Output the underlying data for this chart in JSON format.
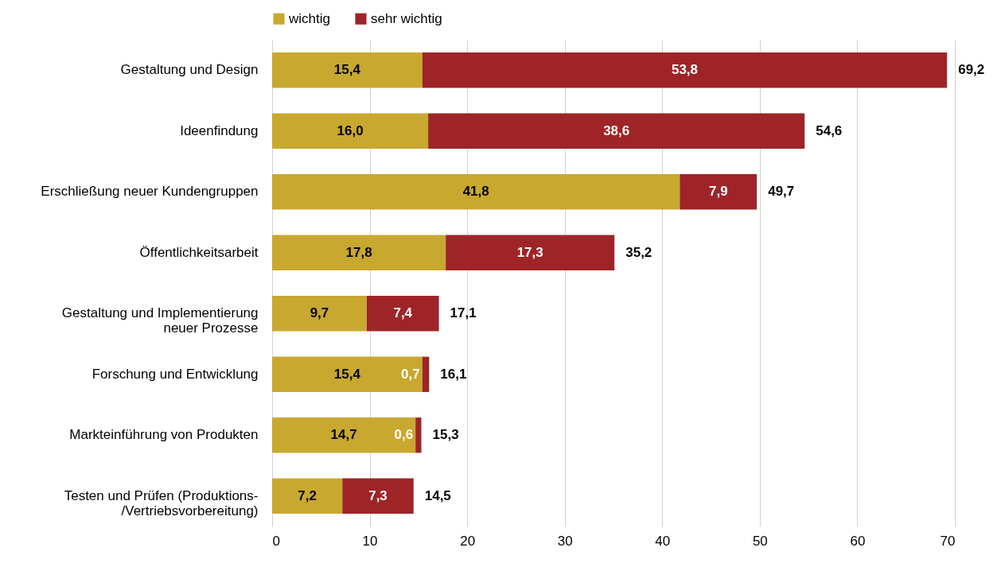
{
  "chart_data": {
    "type": "bar",
    "orientation": "horizontal",
    "stacked": true,
    "categories": [
      "Gestaltung und Design",
      "Ideenfindung",
      "Erschließung neuer Kundengruppen",
      "Öffentlichkeitsarbeit",
      "Gestaltung und Implementierung neuer Prozesse",
      "Forschung und Entwicklung",
      "Markteinführung von Produkten",
      "Testen und Prüfen (Produktions-/Vertriebsvorbereitung)"
    ],
    "series": [
      {
        "name": "wichtig",
        "color": "#c8a82f",
        "values": [
          15.4,
          16.0,
          41.8,
          17.8,
          9.7,
          15.4,
          14.7,
          7.2
        ],
        "value_labels": [
          "15,4",
          "16,0",
          "41,8",
          "17,8",
          "9,7",
          "15,4",
          "14,7",
          "7,2"
        ]
      },
      {
        "name": "sehr wichtig",
        "color": "#9e2427",
        "values": [
          53.8,
          38.6,
          7.9,
          17.3,
          7.4,
          0.7,
          0.6,
          7.3
        ],
        "value_labels": [
          "53,8",
          "38,6",
          "7,9",
          "17,3",
          "7,4",
          "0,7",
          "0,6",
          "7,3"
        ]
      }
    ],
    "totals": [
      "69,2",
      "54,6",
      "49,7",
      "35,2",
      "17,1",
      "16,1",
      "15,3",
      "14,5"
    ],
    "xlim": [
      0,
      70
    ],
    "xticks": [
      0,
      10,
      20,
      30,
      40,
      50,
      60,
      70
    ],
    "grid": "x",
    "legend": "top"
  }
}
